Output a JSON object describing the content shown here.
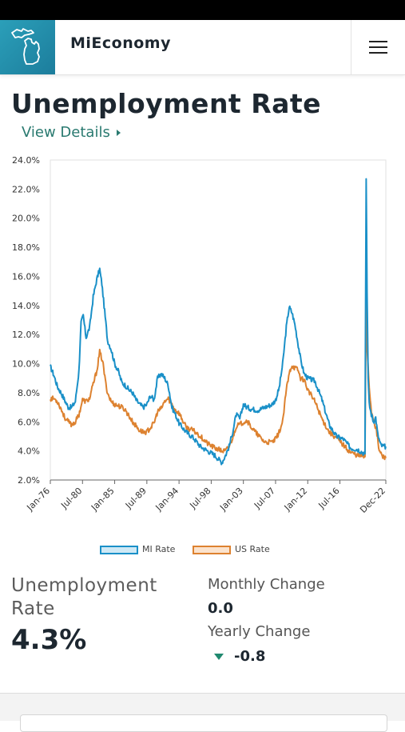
{
  "app": {
    "title": "MiEconomy"
  },
  "page": {
    "title": "Unemployment Rate",
    "view_details": "View Details"
  },
  "summary": {
    "label": "Unemployment\nRate",
    "value": "4.3%",
    "monthly_change_label": "Monthly Change",
    "monthly_change_value": "0.0",
    "yearly_change_label": "Yearly Change",
    "yearly_change_value": "-0.8"
  },
  "colors": {
    "mi": "#1a90c8",
    "us": "#dd8230",
    "teal": "#2a7a70",
    "down": "#20896f"
  },
  "chart_data": {
    "type": "line",
    "ylim": [
      2.0,
      24.0
    ],
    "y_ticks": [
      "2.0%",
      "4.0%",
      "6.0%",
      "8.0%",
      "10.0%",
      "12.0%",
      "14.0%",
      "16.0%",
      "18.0%",
      "20.0%",
      "22.0%",
      "24.0%"
    ],
    "x_ticks": [
      "Jan-76",
      "Jul-80",
      "Jan-85",
      "Jul-89",
      "Jan-94",
      "Jul-98",
      "Jan-03",
      "Jul-07",
      "Jan-12",
      "Jul-16",
      "Dec-22"
    ],
    "x_tick_years": [
      1976.0,
      1980.5,
      1985.0,
      1989.5,
      1994.0,
      1998.5,
      2003.0,
      2007.5,
      2012.0,
      2016.5,
      2022.92
    ],
    "xlim": [
      1976.0,
      2022.92
    ],
    "grid": false,
    "legend_position": "bottom",
    "series": [
      {
        "name": "MI Rate",
        "x": [
          1976.0,
          1976.5,
          1977.0,
          1977.5,
          1978.0,
          1978.5,
          1979.0,
          1979.5,
          1980.0,
          1980.3,
          1980.6,
          1981.0,
          1981.5,
          1982.0,
          1982.5,
          1982.9,
          1983.2,
          1983.6,
          1984.0,
          1984.5,
          1985.0,
          1985.5,
          1986.0,
          1986.5,
          1987.0,
          1987.5,
          1988.0,
          1988.5,
          1989.0,
          1989.5,
          1990.0,
          1990.5,
          1991.0,
          1991.5,
          1992.0,
          1992.5,
          1993.0,
          1993.5,
          1994.0,
          1995.0,
          1996.0,
          1997.0,
          1998.0,
          1999.0,
          2000.0,
          2000.5,
          2001.0,
          2001.5,
          2002.0,
          2002.5,
          2003.0,
          2003.5,
          2004.0,
          2005.0,
          2006.0,
          2007.0,
          2007.5,
          2008.0,
          2008.5,
          2009.0,
          2009.4,
          2009.8,
          2010.2,
          2010.6,
          2011.0,
          2011.5,
          2012.0,
          2013.0,
          2014.0,
          2015.0,
          2016.0,
          2017.0,
          2018.0,
          2019.0,
          2020.0,
          2020.17,
          2020.3,
          2020.45,
          2020.6,
          2020.9,
          2021.2,
          2021.5,
          2021.8,
          2022.2,
          2022.6,
          2022.92
        ],
        "values": [
          9.8,
          9.2,
          8.4,
          8.0,
          7.5,
          7.0,
          7.0,
          7.4,
          9.5,
          12.8,
          13.3,
          11.8,
          12.5,
          14.6,
          15.8,
          16.5,
          15.5,
          13.6,
          11.6,
          11.0,
          10.0,
          9.5,
          8.7,
          8.5,
          8.2,
          8.0,
          7.5,
          7.2,
          7.0,
          7.2,
          7.8,
          7.5,
          9.0,
          9.3,
          9.0,
          8.5,
          7.0,
          6.5,
          5.9,
          5.3,
          4.9,
          4.3,
          4.0,
          3.7,
          3.2,
          3.7,
          4.3,
          5.3,
          6.5,
          6.2,
          7.2,
          7.0,
          6.9,
          6.8,
          7.0,
          7.2,
          7.5,
          8.3,
          10.0,
          12.5,
          13.9,
          13.5,
          12.7,
          11.5,
          10.3,
          9.3,
          9.0,
          8.8,
          7.5,
          5.8,
          5.0,
          4.8,
          4.2,
          4.1,
          3.8,
          22.7,
          15.0,
          9.0,
          7.2,
          6.5,
          6.0,
          6.3,
          5.1,
          4.4,
          4.3,
          4.3
        ]
      },
      {
        "name": "US Rate",
        "x": [
          1976.0,
          1976.5,
          1977.0,
          1977.5,
          1978.0,
          1978.5,
          1979.0,
          1979.5,
          1980.0,
          1980.5,
          1981.0,
          1981.5,
          1982.0,
          1982.5,
          1982.9,
          1983.3,
          1983.7,
          1984.0,
          1984.5,
          1985.0,
          1985.5,
          1986.0,
          1986.5,
          1987.0,
          1987.5,
          1988.0,
          1988.5,
          1989.0,
          1989.5,
          1990.0,
          1990.5,
          1991.0,
          1991.5,
          1992.0,
          1992.5,
          1993.0,
          1993.5,
          1994.0,
          1995.0,
          1996.0,
          1997.0,
          1998.0,
          1999.0,
          2000.0,
          2000.5,
          2001.0,
          2001.5,
          2002.0,
          2002.5,
          2003.0,
          2003.5,
          2004.0,
          2005.0,
          2006.0,
          2007.0,
          2007.5,
          2008.0,
          2008.5,
          2009.0,
          2009.5,
          2009.8,
          2010.2,
          2010.6,
          2011.0,
          2011.5,
          2012.0,
          2013.0,
          2014.0,
          2015.0,
          2016.0,
          2017.0,
          2018.0,
          2019.0,
          2020.0,
          2020.17,
          2020.3,
          2020.6,
          2020.9,
          2021.2,
          2021.6,
          2022.0,
          2022.5,
          2022.92
        ],
        "values": [
          7.6,
          7.6,
          7.4,
          6.9,
          6.3,
          6.0,
          5.8,
          6.0,
          6.5,
          7.5,
          7.4,
          7.6,
          8.6,
          9.5,
          10.8,
          10.2,
          8.8,
          8.0,
          7.4,
          7.2,
          7.1,
          7.0,
          6.8,
          6.4,
          6.0,
          5.7,
          5.4,
          5.3,
          5.3,
          5.6,
          5.9,
          6.7,
          6.9,
          7.4,
          7.6,
          7.2,
          6.8,
          6.6,
          5.6,
          5.4,
          5.0,
          4.5,
          4.2,
          4.0,
          4.0,
          4.3,
          4.9,
          5.7,
          5.8,
          6.0,
          6.1,
          5.7,
          5.1,
          4.6,
          4.6,
          4.8,
          5.3,
          6.0,
          8.2,
          9.5,
          9.9,
          9.7,
          9.6,
          9.0,
          8.9,
          8.2,
          7.4,
          6.2,
          5.3,
          4.9,
          4.4,
          3.9,
          3.7,
          3.6,
          14.7,
          11.1,
          8.4,
          6.7,
          6.2,
          5.4,
          4.0,
          3.6,
          3.5
        ]
      }
    ]
  }
}
